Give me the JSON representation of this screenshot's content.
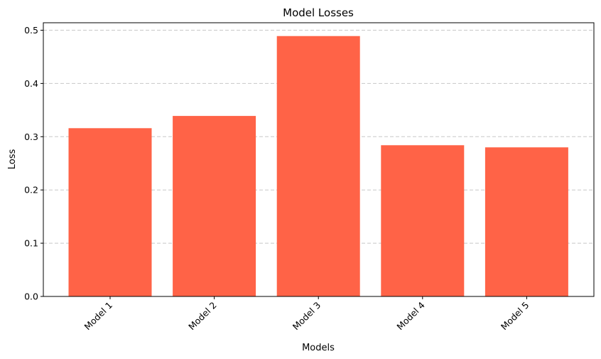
{
  "chart_data": {
    "type": "bar",
    "title": "Model Losses",
    "xlabel": "Models",
    "ylabel": "Loss",
    "categories": [
      "Model 1",
      "Model 2",
      "Model 3",
      "Model 4",
      "Model 5"
    ],
    "values": [
      0.316,
      0.339,
      0.489,
      0.284,
      0.28
    ],
    "ylim": [
      0,
      0.514
    ],
    "yticks": [
      0.0,
      0.1,
      0.2,
      0.3,
      0.4,
      0.5
    ],
    "ytick_labels": [
      "0.0",
      "0.1",
      "0.2",
      "0.3",
      "0.4",
      "0.5"
    ],
    "grid": "y-dashed",
    "bar_color": "#ff6347",
    "grid_color": "#c8c8c8"
  }
}
